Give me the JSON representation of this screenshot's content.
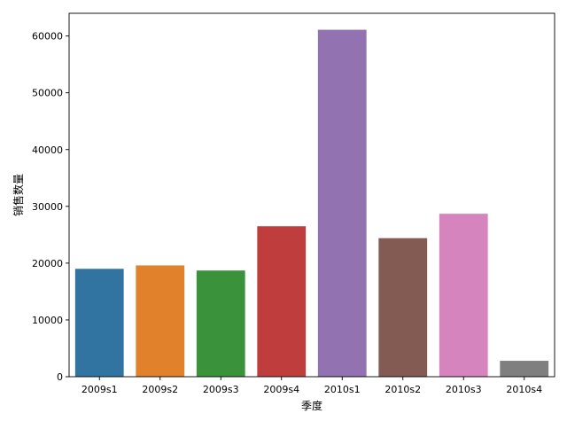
{
  "chart_data": {
    "type": "bar",
    "title": "",
    "xlabel": "季度",
    "ylabel": "销售数量",
    "categories": [
      "2009s1",
      "2009s2",
      "2009s3",
      "2009s4",
      "2010s1",
      "2010s2",
      "2010s3",
      "2010s4"
    ],
    "values": [
      19000,
      19600,
      18700,
      26500,
      61100,
      24400,
      28700,
      2800
    ],
    "colors": [
      "#3274a1",
      "#e1812c",
      "#3a923a",
      "#c03d3e",
      "#9372b2",
      "#845b53",
      "#d684bd",
      "#7f7f7f"
    ],
    "ylim": [
      0,
      64000
    ],
    "yticks": [
      0,
      10000,
      20000,
      30000,
      40000,
      50000,
      60000
    ],
    "grid": false,
    "legend": "none"
  }
}
